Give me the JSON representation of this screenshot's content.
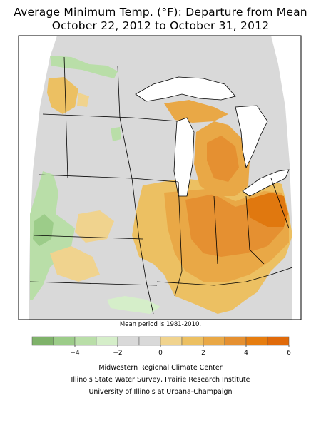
{
  "title_line1": "Average Minimum Temp. (°F): Departure from Mean",
  "title_line2": "October 22, 2012 to October 31, 2012",
  "note": "Mean period is 1981-2010.",
  "legend": {
    "colors": [
      "#7fb26a",
      "#9ccc89",
      "#b9dea8",
      "#d5eec9",
      "#d9d9d9",
      "#d9d9d9",
      "#f0d38e",
      "#ecc062",
      "#e9a846",
      "#e59031",
      "#e67d10",
      "#e06a0a"
    ],
    "tick_values": [
      -4,
      -2,
      0,
      2,
      4,
      6
    ],
    "tick_labels": [
      "−4",
      "−2",
      "0",
      "2",
      "4",
      "6"
    ]
  },
  "colors": {
    "neutral": "#d9d9d9",
    "light_orange": "#f0d38e",
    "mid_orange": "#ecc062",
    "orange": "#e9a846",
    "dark_orange": "#e59031",
    "deep_orange": "#e0780f",
    "light_green": "#d5eec9",
    "green": "#b9dea8",
    "lake": "#ffffff"
  },
  "credits": {
    "line1": "Midwestern Regional Climate Center",
    "line2": "Illinois State Water Survey, Prairie Research Institute",
    "line3": "University of Illinois at Urbana-Champaign"
  }
}
